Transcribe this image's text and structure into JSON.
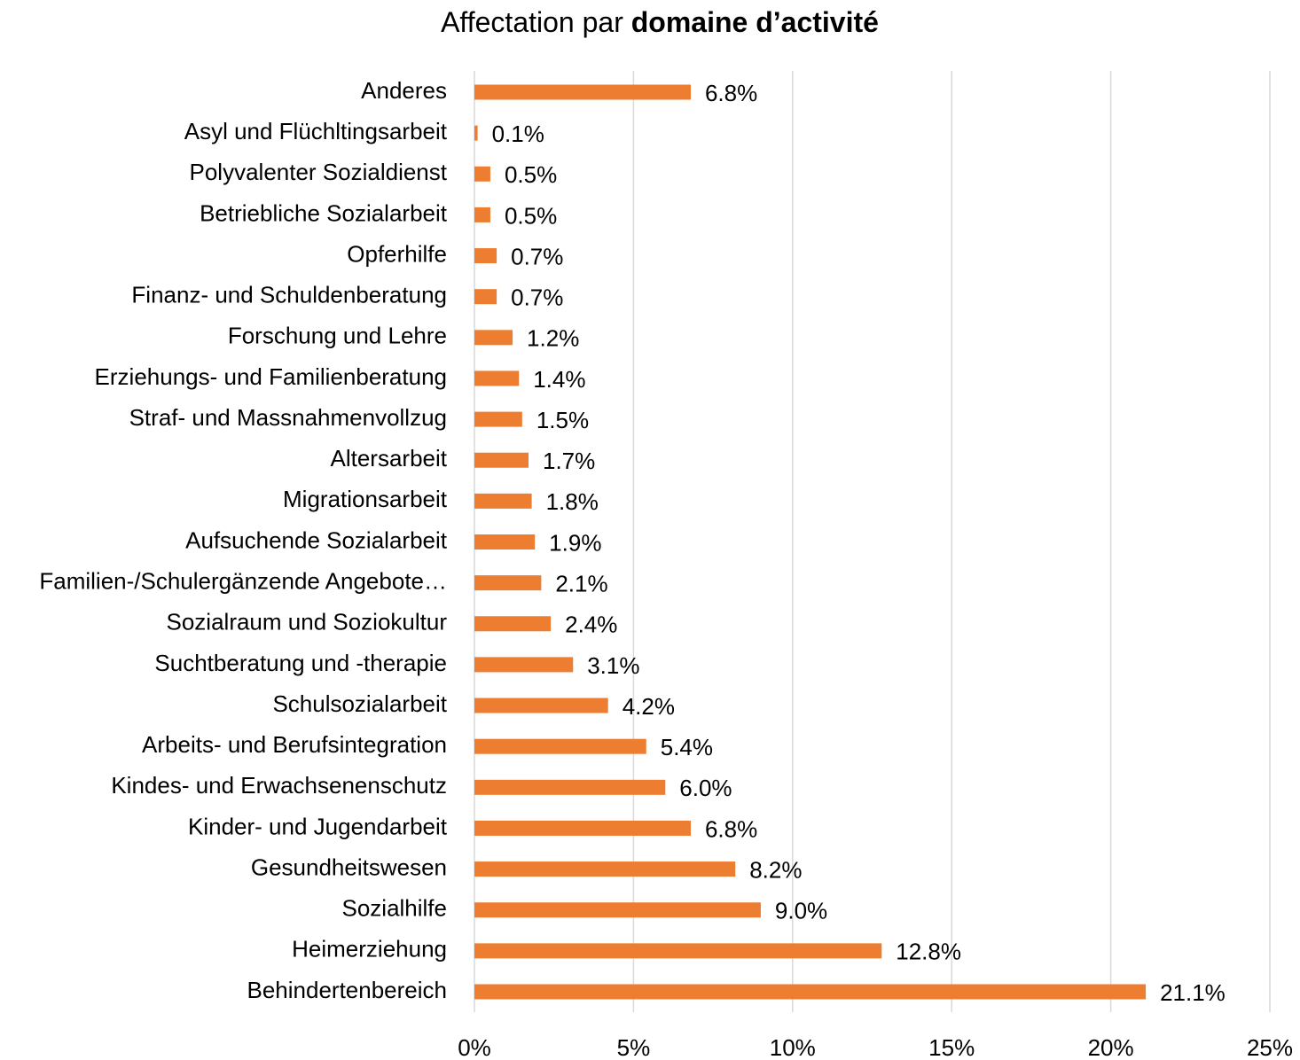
{
  "chart_data": {
    "type": "hbar",
    "title": {
      "text": "Affectation par",
      "bold": "domaine d’activité"
    },
    "categories": [
      "Anderes",
      "Asyl und Flüchltingsarbeit",
      "Polyvalenter Sozialdienst",
      "Betriebliche Sozialarbeit",
      "Opferhilfe",
      "Finanz- und Schuldenberatung",
      "Forschung und Lehre",
      "Erziehungs- und Familienberatung",
      "Straf- und Massnahmenvollzug",
      "Altersarbeit",
      "Migrationsarbeit",
      "Aufsuchende Sozialarbeit",
      "Familien-/Schulergänzende Angebote…",
      "Sozialraum und Soziokultur",
      "Suchtberatung und -therapie",
      "Schulsozialarbeit",
      "Arbeits- und Berufsintegration",
      "Kindes- und Erwachsenenschutz",
      "Kinder- und Jugendarbeit",
      "Gesundheitswesen",
      "Sozialhilfe",
      "Heimerziehung",
      "Behindertenbereich"
    ],
    "values": [
      6.8,
      0.1,
      0.5,
      0.5,
      0.7,
      0.7,
      1.2,
      1.4,
      1.5,
      1.7,
      1.8,
      1.9,
      2.1,
      2.4,
      3.1,
      4.2,
      5.4,
      6.0,
      6.8,
      8.2,
      9.0,
      12.8,
      21.1
    ],
    "value_labels": [
      "6.8%",
      "0.1%",
      "0.5%",
      "0.5%",
      "0.7%",
      "0.7%",
      "1.2%",
      "1.4%",
      "1.5%",
      "1.7%",
      "1.8%",
      "1.9%",
      "2.1%",
      "2.4%",
      "3.1%",
      "4.2%",
      "5.4%",
      "6.0%",
      "6.8%",
      "8.2%",
      "9.0%",
      "12.8%",
      "21.1%"
    ],
    "color": "#ed7d31",
    "xlim": [
      0,
      25
    ],
    "xticks": [
      {
        "value": 0,
        "label": "0%"
      },
      {
        "value": 5,
        "label": "5%"
      },
      {
        "value": 10,
        "label": "10%"
      },
      {
        "value": 15,
        "label": "15%"
      },
      {
        "value": 20,
        "label": "20%"
      },
      {
        "value": 25,
        "label": "25%"
      }
    ],
    "grid": true
  }
}
